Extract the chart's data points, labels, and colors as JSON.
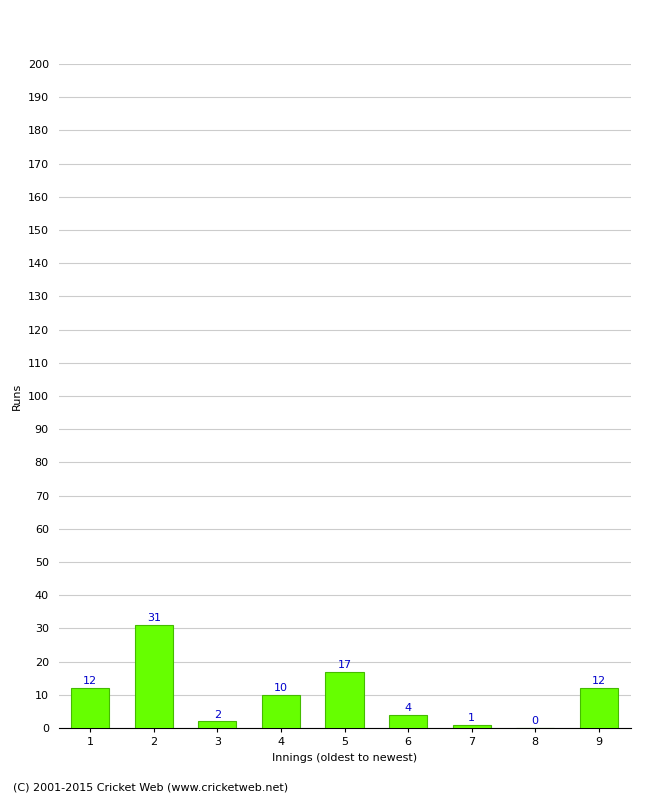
{
  "categories": [
    "1",
    "2",
    "3",
    "4",
    "5",
    "6",
    "7",
    "8",
    "9"
  ],
  "values": [
    12,
    31,
    2,
    10,
    17,
    4,
    1,
    0,
    12
  ],
  "bar_color": "#66ff00",
  "bar_edge_color": "#44bb00",
  "xlabel": "Innings (oldest to newest)",
  "ylabel": "Runs",
  "ylim": [
    0,
    200
  ],
  "yticks": [
    0,
    10,
    20,
    30,
    40,
    50,
    60,
    70,
    80,
    90,
    100,
    110,
    120,
    130,
    140,
    150,
    160,
    170,
    180,
    190,
    200
  ],
  "label_color": "#0000cc",
  "label_fontsize": 8,
  "axis_label_fontsize": 8,
  "tick_fontsize": 8,
  "footer_text": "(C) 2001-2015 Cricket Web (www.cricketweb.net)",
  "footer_fontsize": 8,
  "background_color": "#ffffff",
  "grid_color": "#cccccc"
}
